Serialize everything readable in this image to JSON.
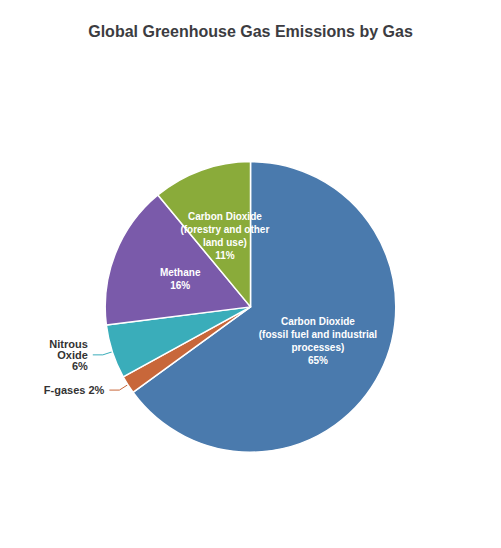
{
  "chart_data": {
    "type": "pie",
    "title": "Global Greenhouse Gas Emissions by Gas",
    "values": [
      65,
      2,
      6,
      16,
      11
    ],
    "value_labels": [
      "Carbon Dioxide\n(fossil fuel and industrial\nprocesses)\n65%",
      "F-gases 2%",
      "Nitrous\nOxide\n6%",
      "Methane\n16%",
      "Carbon Dioxide\n(forestry and other\nland use)\n11%"
    ],
    "colors": [
      "#4a7aad",
      "#c8673a",
      "#3aadba",
      "#7a5aaa",
      "#8aab3a"
    ],
    "data_labels": true
  }
}
